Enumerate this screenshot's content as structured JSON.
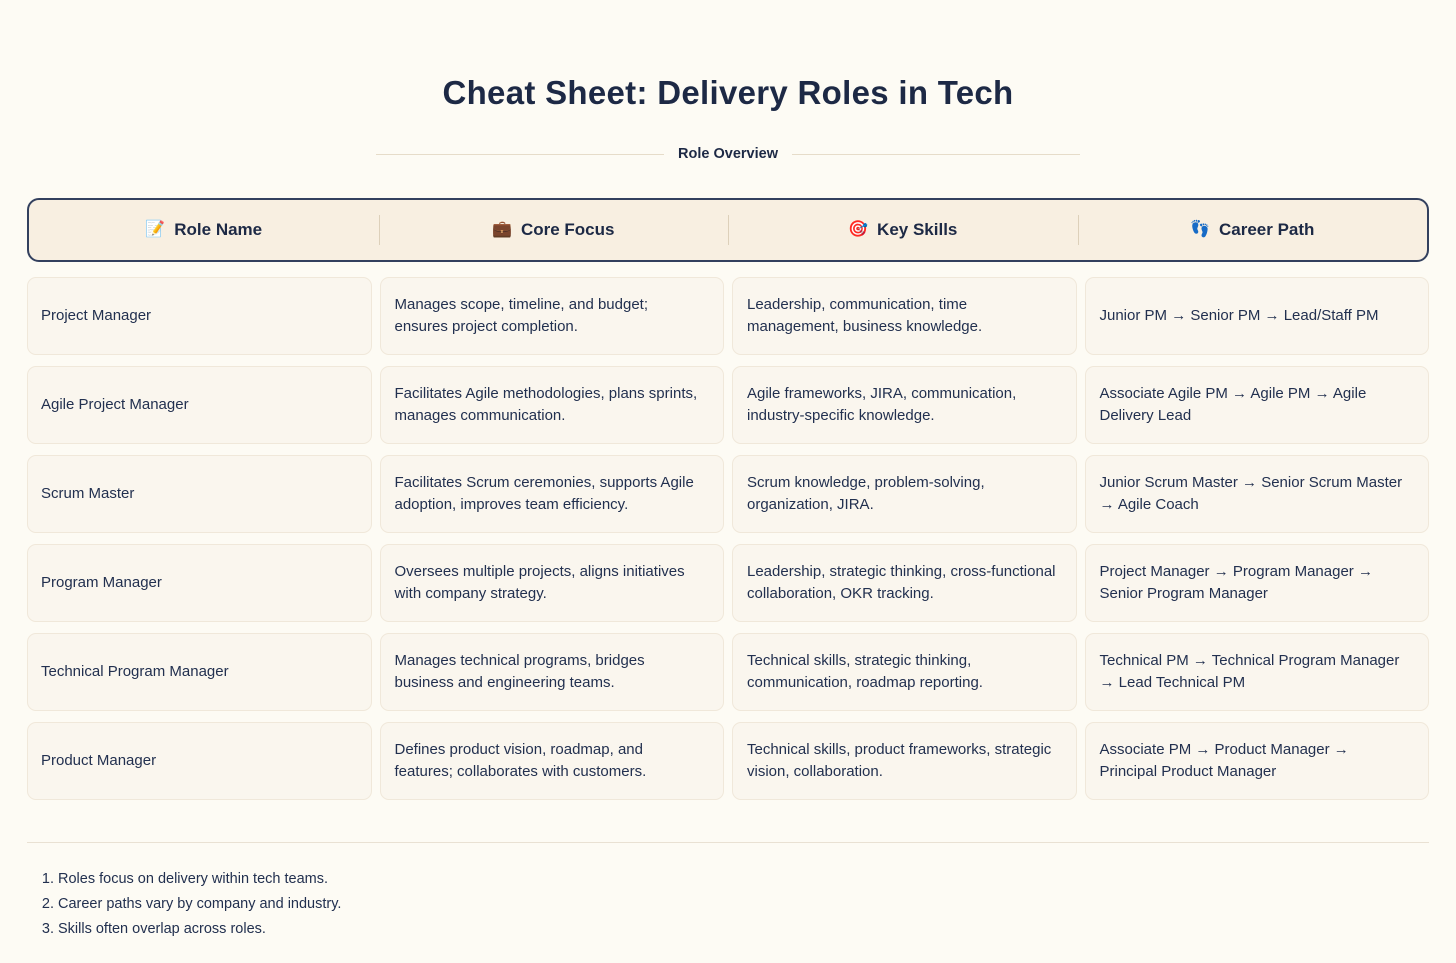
{
  "page": {
    "title": "Cheat Sheet: Delivery Roles in Tech",
    "section_label": "Role Overview"
  },
  "table": {
    "headers": [
      {
        "icon": "📝",
        "label": "Role Name"
      },
      {
        "icon": "💼",
        "label": "Core Focus"
      },
      {
        "icon": "🎯",
        "label": "Key Skills"
      },
      {
        "icon": "👣",
        "label": "Career Path"
      }
    ],
    "rows": [
      {
        "role": "Project Manager",
        "focus": "Manages scope, timeline, and budget; ensures project completion.",
        "skills": "Leadership, communication, time management, business knowledge.",
        "path": "Junior PM → Senior PM → Lead/Staff PM"
      },
      {
        "role": "Agile Project Manager",
        "focus": "Facilitates Agile methodologies, plans sprints, manages communication.",
        "skills": "Agile frameworks, JIRA, communication, industry-specific knowledge.",
        "path": "Associate Agile PM → Agile PM → Agile Delivery Lead"
      },
      {
        "role": "Scrum Master",
        "focus": "Facilitates Scrum ceremonies, supports Agile adoption, improves team efficiency.",
        "skills": "Scrum knowledge, problem-solving, organization, JIRA.",
        "path": "Junior Scrum Master → Senior Scrum Master → Agile Coach"
      },
      {
        "role": "Program Manager",
        "focus": "Oversees multiple projects, aligns initiatives with company strategy.",
        "skills": "Leadership, strategic thinking, cross-functional collaboration, OKR tracking.",
        "path": "Project Manager → Program Manager → Senior Program Manager"
      },
      {
        "role": "Technical Program Manager",
        "focus": "Manages technical programs, bridges business and engineering teams.",
        "skills": "Technical skills, strategic thinking, communication, roadmap reporting.",
        "path": "Technical PM → Technical Program Manager → Lead Technical PM"
      },
      {
        "role": "Product Manager",
        "focus": "Defines product vision, roadmap, and features; collaborates with customers.",
        "skills": "Technical skills, product frameworks, strategic vision, collaboration.",
        "path": "Associate PM → Product Manager → Principal Product Manager"
      }
    ]
  },
  "footnotes": [
    "Roles focus on delivery within tech teams.",
    "Career paths vary by company and industry.",
    "Skills often overlap across roles."
  ],
  "colors": {
    "page_background": "#fdfbf4",
    "header_background": "#f8efe1",
    "header_border": "#33405e",
    "card_background": "#faf6ee",
    "card_border": "#f0e8da",
    "text_navy": "#1d2945",
    "rule_beige": "#e6dcc9"
  }
}
